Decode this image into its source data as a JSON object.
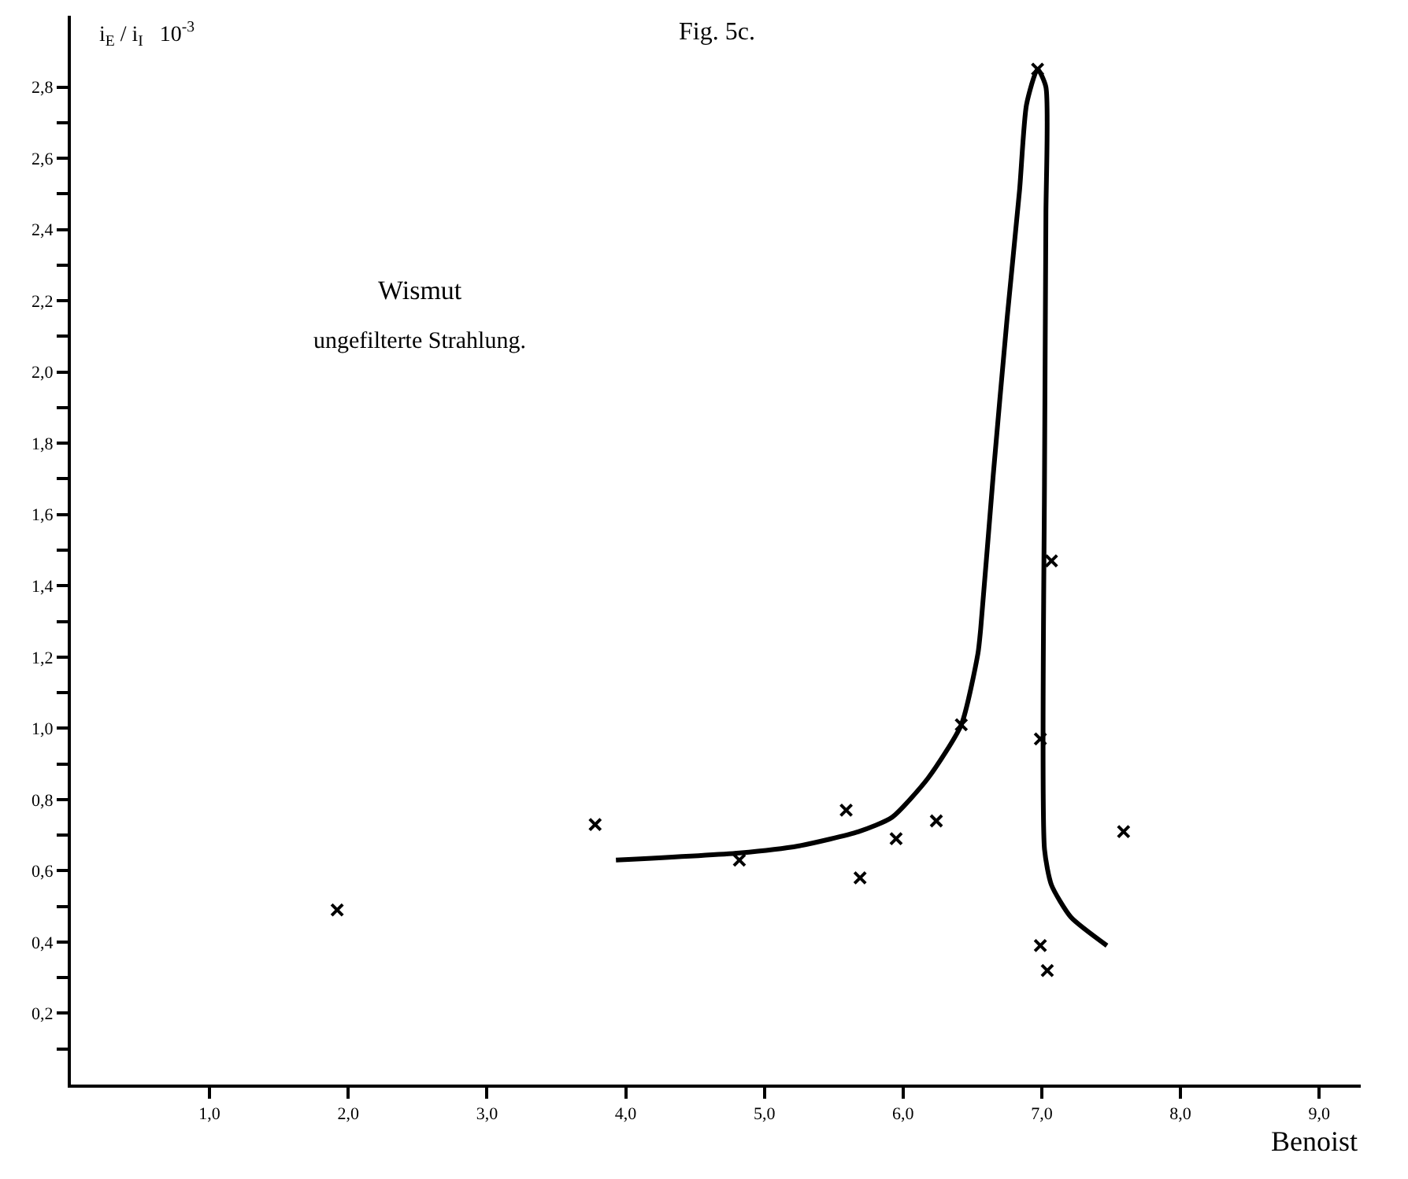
{
  "chart_data": {
    "type": "scatter",
    "title": "Fig. 5c.",
    "xlabel": "Benoist",
    "ylabel": "i$_{E}$ / i$_{I}$   10$^{-3}$",
    "annotations": [
      "Wismut",
      "ungefilterte Strahlung."
    ],
    "xlim": [
      0,
      9.3
    ],
    "ylim": [
      0,
      3.0
    ],
    "xticks": [
      {
        "value": 1,
        "label": "1,0"
      },
      {
        "value": 2,
        "label": "2,0"
      },
      {
        "value": 3,
        "label": "3,0"
      },
      {
        "value": 4,
        "label": "4,0"
      },
      {
        "value": 5,
        "label": "5,0"
      },
      {
        "value": 6,
        "label": "6,0"
      },
      {
        "value": 7,
        "label": "7,0"
      },
      {
        "value": 8,
        "label": "8,0"
      },
      {
        "value": 9,
        "label": "9,0"
      }
    ],
    "yticks": [
      {
        "value": 0.1,
        "label": null
      },
      {
        "value": 0.2,
        "label": "0,2"
      },
      {
        "value": 0.3,
        "label": null
      },
      {
        "value": 0.4,
        "label": "0,4"
      },
      {
        "value": 0.5,
        "label": null
      },
      {
        "value": 0.6,
        "label": "0,6"
      },
      {
        "value": 0.7,
        "label": null
      },
      {
        "value": 0.8,
        "label": "0,8"
      },
      {
        "value": 0.9,
        "label": null
      },
      {
        "value": 1.0,
        "label": "1,0"
      },
      {
        "value": 1.1,
        "label": null
      },
      {
        "value": 1.2,
        "label": "1,2"
      },
      {
        "value": 1.3,
        "label": null
      },
      {
        "value": 1.4,
        "label": "1,4"
      },
      {
        "value": 1.5,
        "label": null
      },
      {
        "value": 1.6,
        "label": "1,6"
      },
      {
        "value": 1.7,
        "label": null
      },
      {
        "value": 1.8,
        "label": "1,8"
      },
      {
        "value": 1.9,
        "label": null
      },
      {
        "value": 2.0,
        "label": "2,0"
      },
      {
        "value": 2.1,
        "label": null
      },
      {
        "value": 2.2,
        "label": "2,2"
      },
      {
        "value": 2.3,
        "label": null
      },
      {
        "value": 2.4,
        "label": "2,4"
      },
      {
        "value": 2.5,
        "label": null
      },
      {
        "value": 2.6,
        "label": "2,6"
      },
      {
        "value": 2.7,
        "label": null
      },
      {
        "value": 2.8,
        "label": "2,8"
      }
    ],
    "series": [
      {
        "marker": "cross",
        "color": "#000000",
        "x": [
          1.92,
          3.78,
          4.82,
          5.59,
          5.69,
          5.95,
          6.24,
          6.42,
          6.97,
          6.99,
          6.99,
          7.04,
          7.07,
          7.59
        ],
        "values": [
          0.49,
          0.73,
          0.63,
          0.77,
          0.58,
          0.69,
          0.74,
          1.01,
          2.85,
          0.97,
          0.39,
          0.32,
          1.47,
          0.71
        ]
      },
      {
        "type": "line",
        "marker": "none",
        "line_style": "solid",
        "color": "#000000",
        "x": [
          3.93,
          4.82,
          5.25,
          5.68,
          5.92,
          6.18,
          6.42,
          6.54,
          6.56,
          6.65,
          6.75,
          6.84,
          6.89,
          6.97,
          7.03,
          7.03,
          7.02,
          7.02,
          7.07,
          7.21,
          7.47
        ],
        "values": [
          0.63,
          0.65,
          0.67,
          0.71,
          0.75,
          0.86,
          1.01,
          1.21,
          1.28,
          1.71,
          2.15,
          2.51,
          2.75,
          2.85,
          2.8,
          2.44,
          1.71,
          0.66,
          0.56,
          0.47,
          0.39
        ]
      }
    ]
  }
}
